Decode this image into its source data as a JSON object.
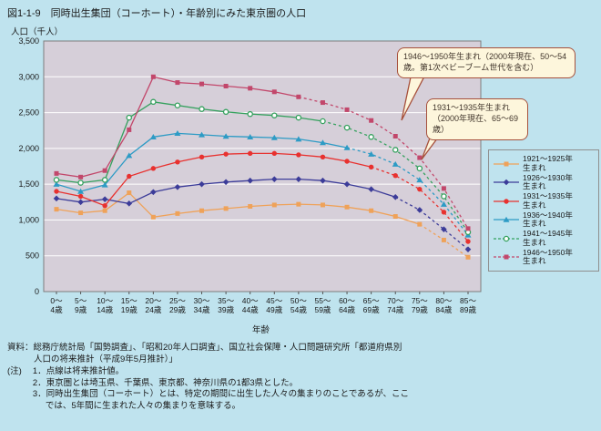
{
  "page": {
    "title": "図1-1-9　同時出生集団（コーホート）・年齢別にみた東京圏の人口",
    "y_axis_unit": "人口（千人）",
    "x_axis_label": "年齢",
    "source_line1": "資料：総務庁統計局「国勢調査」、「昭和20年人口調査」、国立社会保障・人口問題研究所「都道府県別",
    "source_line2": "人口の将来推計（平成9年5月推計）」",
    "notes_label": "(注)",
    "notes": [
      "1．点線は将来推計値。",
      "2．東京圏とは埼玉県、千葉県、東京都、神奈川県の1都3県とした。",
      "3．同時出生集団（コーホート）とは、特定の期間に出生した人々の集まりのことであるが、ここ",
      "では、5年間に生まれた人々の集まりを意味する。"
    ]
  },
  "annotations": [
    {
      "text": "1946～1950年生まれ（2000年現在、50～54歳。第1次ベビーブーム世代を含む）"
    },
    {
      "text": "1931～1935年生まれ（2000年現在、65～69歳）"
    }
  ],
  "colors": {
    "page_bg": "#BFE3EE",
    "plot_bg": "#D6CFD9",
    "gridline": "#FFFFFF",
    "plot_border": "#7D7D7D",
    "callout_bg": "#FDF6DC",
    "callout_border": "#A6503C"
  },
  "chart_data": {
    "type": "line",
    "title": "図1-1-9　同時出生集団（コーホート）・年齢別にみた東京圏の人口",
    "xlabel": "年齢",
    "ylabel": "人口（千人）",
    "ylim": [
      0,
      3500
    ],
    "yticks": [
      0,
      500,
      1000,
      1500,
      2000,
      2500,
      3000,
      3500
    ],
    "ytick_labels": [
      "0",
      "500",
      "1,000",
      "1,500",
      "2,000",
      "2,500",
      "3,000",
      "3,500"
    ],
    "grid": true,
    "legend_position": "right",
    "line_style_note": "点線は将来推計値",
    "categories": [
      "0～4歳",
      "5～9歳",
      "10～14歳",
      "15～19歳",
      "20～24歳",
      "25～29歳",
      "30～34歳",
      "35～39歳",
      "40～44歳",
      "45～49歳",
      "50～54歳",
      "55～59歳",
      "60～64歳",
      "65～69歳",
      "70～74歳",
      "75～79歳",
      "80～84歳",
      "85～89歳"
    ],
    "series": [
      {
        "name": "1921～1925年生まれ",
        "label_line1": "1921～1925年",
        "label_line2": "生まれ",
        "color": "#EFA259",
        "marker": "square",
        "solid_until": 15,
        "legend_dash": false,
        "values": [
          1150,
          1100,
          1130,
          1380,
          1040,
          1090,
          1130,
          1160,
          1190,
          1210,
          1220,
          1210,
          1180,
          1130,
          1050,
          940,
          720,
          480
        ]
      },
      {
        "name": "1926～1930年生まれ",
        "label_line1": "1926～1930年",
        "label_line2": "生まれ",
        "color": "#3C3C99",
        "marker": "diamond",
        "solid_until": 14,
        "legend_dash": false,
        "values": [
          1300,
          1250,
          1290,
          1230,
          1390,
          1460,
          1500,
          1530,
          1550,
          1570,
          1570,
          1550,
          1500,
          1430,
          1320,
          1140,
          870,
          590
        ]
      },
      {
        "name": "1931～1935年生まれ",
        "label_line1": "1931～1935年",
        "label_line2": "生まれ",
        "color": "#E8312F",
        "marker": "circle",
        "solid_until": 13,
        "legend_dash": false,
        "values": [
          1400,
          1330,
          1200,
          1610,
          1720,
          1810,
          1880,
          1920,
          1930,
          1930,
          1910,
          1880,
          1820,
          1740,
          1620,
          1430,
          1110,
          700
        ]
      },
      {
        "name": "1936～1940年生まれ",
        "label_line1": "1936～1940年",
        "label_line2": "生まれ",
        "color": "#2D9BC5",
        "marker": "triangle",
        "solid_until": 12,
        "legend_dash": false,
        "values": [
          1500,
          1400,
          1490,
          1900,
          2160,
          2210,
          2190,
          2170,
          2160,
          2150,
          2130,
          2080,
          2010,
          1920,
          1780,
          1560,
          1220,
          790
        ]
      },
      {
        "name": "1941～1945年生まれ",
        "label_line1": "1941～1945年",
        "label_line2": "生まれ",
        "color": "#35A15E",
        "marker": "circle-open",
        "solid_until": 11,
        "legend_dash": true,
        "values": [
          1560,
          1520,
          1560,
          2430,
          2650,
          2600,
          2550,
          2510,
          2480,
          2460,
          2430,
          2380,
          2290,
          2160,
          1980,
          1720,
          1330,
          830
        ]
      },
      {
        "name": "1946～1950年生まれ",
        "label_line1": "1946～1950年",
        "label_line2": "生まれ",
        "color": "#C2476B",
        "marker": "square",
        "solid_until": 10,
        "legend_dash": true,
        "values": [
          1650,
          1600,
          1690,
          2260,
          3000,
          2920,
          2900,
          2870,
          2840,
          2790,
          2720,
          2640,
          2540,
          2390,
          2170,
          1870,
          1440,
          880
        ]
      }
    ]
  }
}
